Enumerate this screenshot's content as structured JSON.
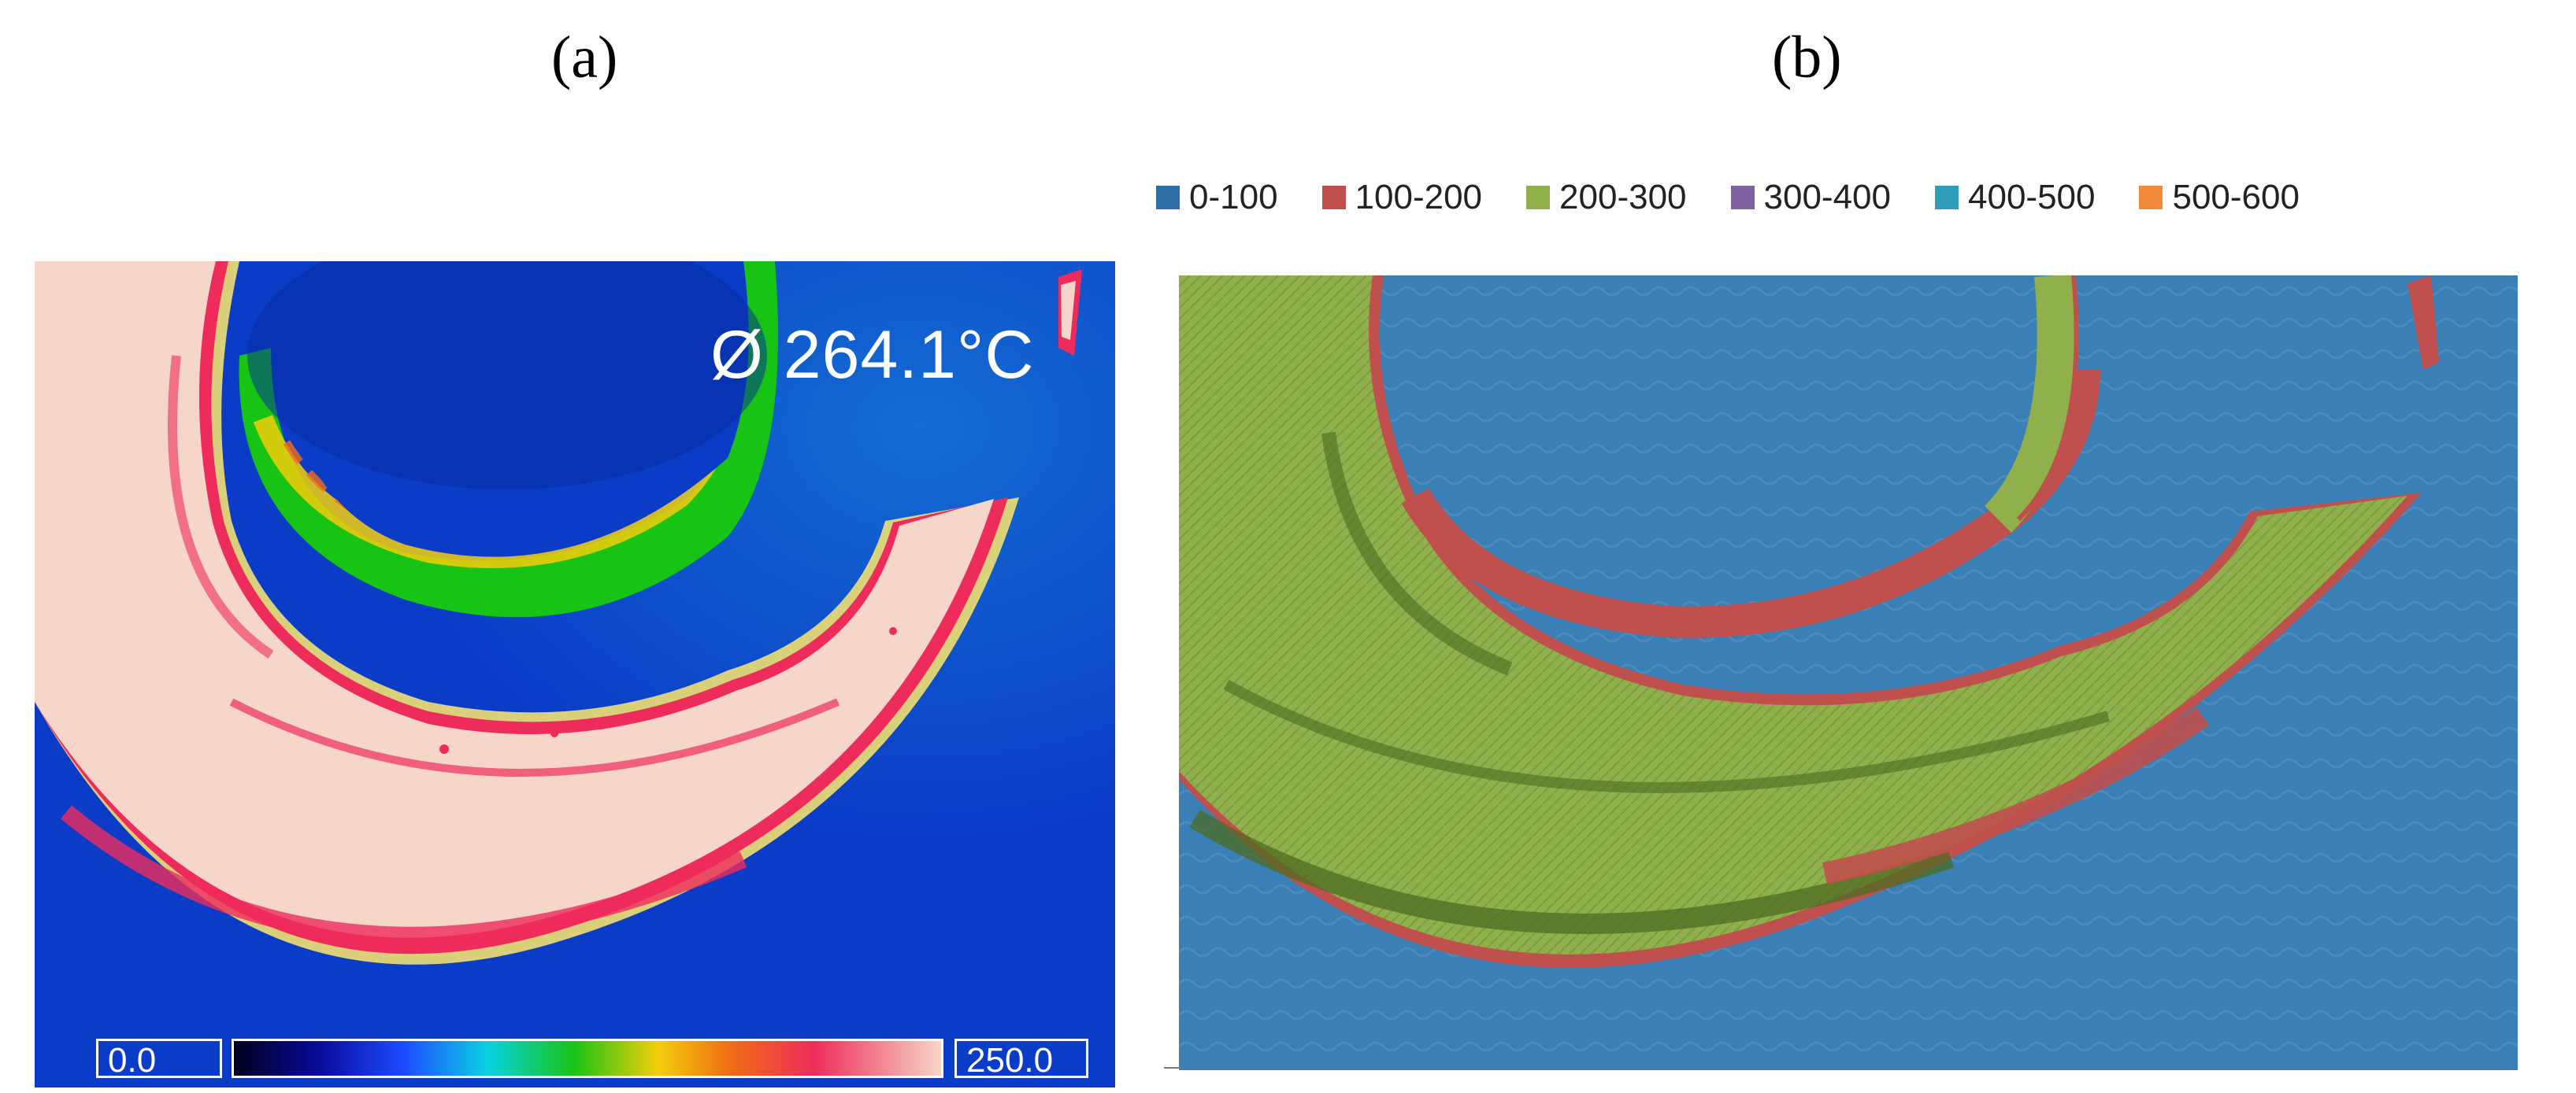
{
  "panels": {
    "a": {
      "label": "(a)",
      "readout": "Ø 264.1°C",
      "scale_min": "0.0",
      "scale_max": "250.0"
    },
    "b": {
      "label": "(b)",
      "legend": [
        {
          "label": "0-100",
          "color": "#2e6fa8"
        },
        {
          "label": "100-200",
          "color": "#c0504d"
        },
        {
          "label": "200-300",
          "color": "#8fb04a"
        },
        {
          "label": "300-400",
          "color": "#7f63a1"
        },
        {
          "label": "400-500",
          "color": "#2f9cb8"
        },
        {
          "label": "500-600",
          "color": "#f38a3a"
        }
      ]
    }
  },
  "colors": {
    "thermal_background": "#0a3cc8",
    "thermal_hot": "#f5d7c8",
    "map_background": "#3a7fb5"
  }
}
